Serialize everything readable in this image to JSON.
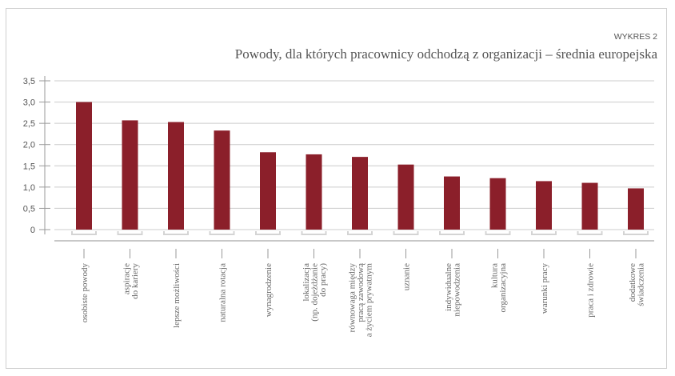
{
  "chart_label": "WYKRES 2",
  "chart_data": {
    "type": "bar",
    "title": "Powody, dla których pracownicy odchodzą z organizacji – średnia europejska",
    "categories": [
      [
        "osobiste powody"
      ],
      [
        "aspiracje",
        "do kariery"
      ],
      [
        "lepsze możliwości"
      ],
      [
        "naturalna rotacja"
      ],
      [
        "wynagrodzenie"
      ],
      [
        "lokalizacja",
        "(np. dojeżdżanie",
        "do pracy)"
      ],
      [
        "równowaga między",
        "pracą zawodową",
        "a życiem prywatnym"
      ],
      [
        "uznanie"
      ],
      [
        "indywidualne",
        "niepowodzenia"
      ],
      [
        "kultura",
        "organizacyjna"
      ],
      [
        "warunki pracy"
      ],
      [
        "praca i zdrowie"
      ],
      [
        "dodatkowe",
        "świadczenia"
      ]
    ],
    "values": [
      3.0,
      2.57,
      2.53,
      2.33,
      1.82,
      1.77,
      1.71,
      1.53,
      1.25,
      1.21,
      1.14,
      1.1,
      0.97
    ],
    "yticks": [
      "0",
      "0,5",
      "1,0",
      "1,5",
      "2,0",
      "2,5",
      "3,0",
      "3,5"
    ],
    "ylim": [
      0,
      3.5
    ],
    "grid": true,
    "xlabel": "",
    "ylabel": "",
    "colors": {
      "bar": "#8b1f2a",
      "grid": "#cccccc",
      "axis": "#9a9a9a",
      "base": "#c8c8c8"
    }
  }
}
